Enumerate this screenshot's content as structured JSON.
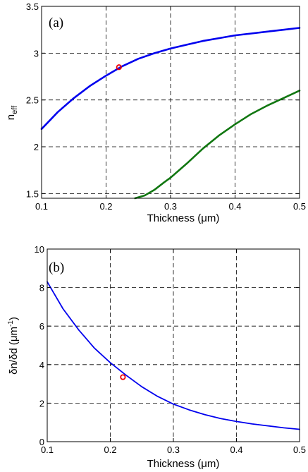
{
  "chart_data": [
    {
      "type": "line",
      "panel_label": "(a)",
      "title": "",
      "xlabel": "Thickness (μm)",
      "ylabel": "n",
      "ylabel_sub": "eff",
      "xlim": [
        0.1,
        0.5
      ],
      "ylim": [
        1.45,
        3.5
      ],
      "xticks": [
        0.1,
        0.2,
        0.3,
        0.4,
        0.5
      ],
      "yticks": [
        1.5,
        2,
        2.5,
        3,
        3.5
      ],
      "xtick_labels": [
        "0.1",
        "0.2",
        "0.3",
        "0.4",
        "0.5"
      ],
      "ytick_labels": [
        "1.5",
        "2",
        "2.5",
        "3",
        "3.5"
      ],
      "grid": true,
      "series": [
        {
          "color": "#0000ee",
          "x": [
            0.1,
            0.125,
            0.15,
            0.175,
            0.2,
            0.225,
            0.25,
            0.275,
            0.3,
            0.325,
            0.35,
            0.375,
            0.4,
            0.425,
            0.45,
            0.475,
            0.5
          ],
          "y": [
            2.19,
            2.37,
            2.52,
            2.65,
            2.76,
            2.86,
            2.94,
            3.0,
            3.05,
            3.09,
            3.13,
            3.16,
            3.19,
            3.21,
            3.23,
            3.25,
            3.27
          ]
        },
        {
          "color": "#117711",
          "x": [
            0.245,
            0.26,
            0.275,
            0.29,
            0.3,
            0.325,
            0.35,
            0.375,
            0.4,
            0.425,
            0.45,
            0.475,
            0.5
          ],
          "y": [
            1.45,
            1.48,
            1.54,
            1.62,
            1.67,
            1.82,
            1.98,
            2.12,
            2.24,
            2.35,
            2.44,
            2.52,
            2.6
          ]
        }
      ],
      "marker": {
        "x": 0.22,
        "y": 2.85,
        "color": "#ee0000"
      }
    },
    {
      "type": "line",
      "panel_label": "(b)",
      "title": "",
      "xlabel": "Thickness (μm)",
      "ylabel": "δn/δd (μm",
      "ylabel_sup": "-1",
      "ylabel_end": ")",
      "xlim": [
        0.1,
        0.5
      ],
      "ylim": [
        0,
        10
      ],
      "xticks": [
        0.1,
        0.2,
        0.3,
        0.4,
        0.5
      ],
      "yticks": [
        0,
        2,
        4,
        6,
        8,
        10
      ],
      "xtick_labels": [
        "0.1",
        "0.2",
        "0.3",
        "0.4",
        "0.5"
      ],
      "ytick_labels": [
        "0",
        "2",
        "4",
        "6",
        "8",
        "10"
      ],
      "grid": true,
      "series": [
        {
          "color": "#0000ee",
          "x": [
            0.1,
            0.125,
            0.15,
            0.175,
            0.2,
            0.225,
            0.25,
            0.275,
            0.3,
            0.325,
            0.35,
            0.375,
            0.4,
            0.425,
            0.45,
            0.475,
            0.5
          ],
          "y": [
            8.3,
            6.9,
            5.8,
            4.85,
            4.1,
            3.45,
            2.85,
            2.35,
            1.95,
            1.65,
            1.4,
            1.2,
            1.05,
            0.92,
            0.82,
            0.72,
            0.64
          ]
        }
      ],
      "marker": {
        "x": 0.22,
        "y": 3.35,
        "color": "#ee0000"
      }
    }
  ]
}
